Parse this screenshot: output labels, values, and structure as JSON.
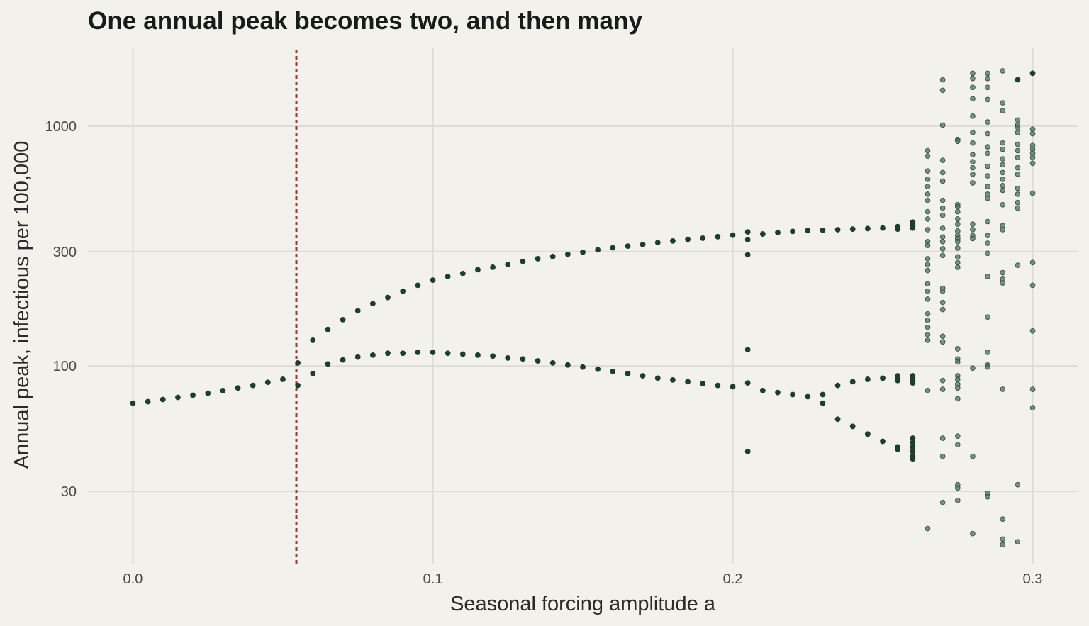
{
  "chart_data": {
    "type": "scatter",
    "title": "One annual peak becomes two, and then many",
    "xlabel": "Seasonal forcing amplitude a",
    "ylabel": "Annual peak, infectious per 100,000",
    "xlim": [
      -0.015,
      0.315
    ],
    "ylim": [
      15,
      2200
    ],
    "y_scale": "log",
    "grid": true,
    "x_ticks": [
      0.0,
      0.1,
      0.2,
      0.3
    ],
    "x_tick_labels": [
      "0.0",
      "0.1",
      "0.2",
      "0.3"
    ],
    "y_ticks": [
      30,
      100,
      300,
      1000
    ],
    "y_tick_labels": [
      "30",
      "100",
      "300",
      "1000"
    ],
    "reference_line": {
      "x": 0.0545,
      "style": "dotted",
      "color": "#9b3a3a"
    },
    "point_color": "#1f3d2c",
    "scatter_color": "#557562",
    "regular_points": [
      [
        0.0,
        70
      ],
      [
        0.005,
        71
      ],
      [
        0.01,
        72.5
      ],
      [
        0.015,
        74
      ],
      [
        0.02,
        75.5
      ],
      [
        0.025,
        77
      ],
      [
        0.03,
        79
      ],
      [
        0.035,
        81
      ],
      [
        0.04,
        83
      ],
      [
        0.045,
        85.5
      ],
      [
        0.05,
        88
      ],
      [
        0.055,
        103
      ],
      [
        0.055,
        83
      ],
      [
        0.06,
        128
      ],
      [
        0.06,
        93
      ],
      [
        0.065,
        142
      ],
      [
        0.065,
        102
      ],
      [
        0.07,
        156
      ],
      [
        0.07,
        106
      ],
      [
        0.075,
        170
      ],
      [
        0.075,
        109
      ],
      [
        0.08,
        182
      ],
      [
        0.08,
        111
      ],
      [
        0.085,
        193
      ],
      [
        0.085,
        113
      ],
      [
        0.09,
        205
      ],
      [
        0.09,
        113
      ],
      [
        0.095,
        217
      ],
      [
        0.095,
        114
      ],
      [
        0.1,
        228
      ],
      [
        0.1,
        114
      ],
      [
        0.105,
        236
      ],
      [
        0.105,
        113
      ],
      [
        0.11,
        243
      ],
      [
        0.11,
        112
      ],
      [
        0.115,
        252
      ],
      [
        0.115,
        111
      ],
      [
        0.12,
        258
      ],
      [
        0.12,
        110
      ],
      [
        0.125,
        265
      ],
      [
        0.125,
        108
      ],
      [
        0.13,
        273
      ],
      [
        0.13,
        107
      ],
      [
        0.135,
        280
      ],
      [
        0.135,
        105
      ],
      [
        0.14,
        286
      ],
      [
        0.14,
        103
      ],
      [
        0.145,
        292
      ],
      [
        0.145,
        101
      ],
      [
        0.15,
        298
      ],
      [
        0.15,
        99
      ],
      [
        0.155,
        305
      ],
      [
        0.155,
        97
      ],
      [
        0.16,
        311
      ],
      [
        0.16,
        95
      ],
      [
        0.165,
        316
      ],
      [
        0.165,
        93
      ],
      [
        0.17,
        321
      ],
      [
        0.17,
        91
      ],
      [
        0.175,
        327
      ],
      [
        0.175,
        89
      ],
      [
        0.18,
        332
      ],
      [
        0.18,
        87.5
      ],
      [
        0.185,
        337
      ],
      [
        0.185,
        86
      ],
      [
        0.19,
        341
      ],
      [
        0.19,
        84.5
      ],
      [
        0.195,
        346
      ],
      [
        0.195,
        83
      ],
      [
        0.2,
        351
      ],
      [
        0.2,
        82
      ],
      [
        0.205,
        362
      ],
      [
        0.205,
        336
      ],
      [
        0.205,
        291
      ],
      [
        0.205,
        117
      ],
      [
        0.205,
        85
      ],
      [
        0.205,
        44
      ],
      [
        0.21,
        355
      ],
      [
        0.21,
        79
      ],
      [
        0.215,
        360
      ],
      [
        0.215,
        77.5
      ],
      [
        0.22,
        364
      ],
      [
        0.22,
        76
      ],
      [
        0.225,
        367
      ],
      [
        0.225,
        74.5
      ],
      [
        0.23,
        368
      ],
      [
        0.23,
        76
      ],
      [
        0.23,
        70
      ],
      [
        0.235,
        370
      ],
      [
        0.235,
        83
      ],
      [
        0.235,
        60
      ],
      [
        0.24,
        372
      ],
      [
        0.24,
        86
      ],
      [
        0.24,
        56
      ],
      [
        0.245,
        374
      ],
      [
        0.245,
        88
      ],
      [
        0.245,
        52
      ],
      [
        0.25,
        376
      ],
      [
        0.25,
        89
      ],
      [
        0.25,
        48.5
      ],
      [
        0.255,
        381
      ],
      [
        0.255,
        376
      ],
      [
        0.255,
        372
      ],
      [
        0.255,
        91
      ],
      [
        0.255,
        89
      ],
      [
        0.255,
        87
      ],
      [
        0.255,
        46
      ],
      [
        0.255,
        45
      ],
      [
        0.26,
        398
      ],
      [
        0.26,
        392
      ],
      [
        0.26,
        386
      ],
      [
        0.26,
        381
      ],
      [
        0.26,
        376
      ],
      [
        0.26,
        91
      ],
      [
        0.26,
        89
      ],
      [
        0.26,
        87
      ],
      [
        0.26,
        85
      ],
      [
        0.26,
        50
      ],
      [
        0.26,
        48
      ],
      [
        0.26,
        46
      ],
      [
        0.26,
        44
      ],
      [
        0.26,
        42
      ],
      [
        0.26,
        41
      ],
      [
        0.295,
        1560
      ],
      [
        0.3,
        1660
      ]
    ],
    "scatter_points": [
      [
        0.265,
        790
      ],
      [
        0.265,
        750
      ],
      [
        0.265,
        650
      ],
      [
        0.265,
        600
      ],
      [
        0.265,
        560
      ],
      [
        0.265,
        520
      ],
      [
        0.265,
        490
      ],
      [
        0.265,
        440
      ],
      [
        0.265,
        410
      ],
      [
        0.265,
        370
      ],
      [
        0.265,
        330
      ],
      [
        0.265,
        318
      ],
      [
        0.265,
        280
      ],
      [
        0.265,
        265
      ],
      [
        0.265,
        250
      ],
      [
        0.265,
        220
      ],
      [
        0.265,
        205
      ],
      [
        0.265,
        190
      ],
      [
        0.265,
        165
      ],
      [
        0.265,
        155
      ],
      [
        0.265,
        145
      ],
      [
        0.265,
        135
      ],
      [
        0.265,
        128
      ],
      [
        0.265,
        79
      ],
      [
        0.265,
        21
      ],
      [
        0.27,
        1560
      ],
      [
        0.27,
        1410
      ],
      [
        0.27,
        1010
      ],
      [
        0.27,
        720
      ],
      [
        0.27,
        640
      ],
      [
        0.27,
        590
      ],
      [
        0.27,
        490
      ],
      [
        0.27,
        455
      ],
      [
        0.27,
        425
      ],
      [
        0.27,
        375
      ],
      [
        0.27,
        345
      ],
      [
        0.27,
        330
      ],
      [
        0.27,
        308
      ],
      [
        0.27,
        289
      ],
      [
        0.27,
        211
      ],
      [
        0.27,
        205
      ],
      [
        0.27,
        184
      ],
      [
        0.27,
        172
      ],
      [
        0.27,
        133
      ],
      [
        0.27,
        126
      ],
      [
        0.27,
        87
      ],
      [
        0.27,
        80
      ],
      [
        0.27,
        50
      ],
      [
        0.27,
        42
      ],
      [
        0.27,
        27
      ],
      [
        0.275,
        880
      ],
      [
        0.275,
        865
      ],
      [
        0.275,
        470
      ],
      [
        0.275,
        460
      ],
      [
        0.275,
        440
      ],
      [
        0.275,
        410
      ],
      [
        0.275,
        390
      ],
      [
        0.275,
        365
      ],
      [
        0.275,
        350
      ],
      [
        0.275,
        340
      ],
      [
        0.275,
        330
      ],
      [
        0.275,
        310
      ],
      [
        0.275,
        285
      ],
      [
        0.275,
        270
      ],
      [
        0.275,
        258
      ],
      [
        0.275,
        118
      ],
      [
        0.275,
        107
      ],
      [
        0.275,
        104
      ],
      [
        0.275,
        91
      ],
      [
        0.275,
        88
      ],
      [
        0.275,
        84
      ],
      [
        0.275,
        81
      ],
      [
        0.275,
        73
      ],
      [
        0.275,
        51
      ],
      [
        0.275,
        47
      ],
      [
        0.275,
        32
      ],
      [
        0.275,
        31
      ],
      [
        0.275,
        27.5
      ],
      [
        0.28,
        1660
      ],
      [
        0.28,
        1580
      ],
      [
        0.28,
        1450
      ],
      [
        0.28,
        1300
      ],
      [
        0.28,
        1100
      ],
      [
        0.28,
        940
      ],
      [
        0.28,
        850
      ],
      [
        0.28,
        760
      ],
      [
        0.28,
        710
      ],
      [
        0.28,
        670
      ],
      [
        0.28,
        630
      ],
      [
        0.28,
        580
      ],
      [
        0.28,
        390
      ],
      [
        0.28,
        370
      ],
      [
        0.28,
        350
      ],
      [
        0.28,
        340
      ],
      [
        0.28,
        98
      ],
      [
        0.28,
        42
      ],
      [
        0.28,
        20
      ],
      [
        0.285,
        1660
      ],
      [
        0.285,
        1580
      ],
      [
        0.285,
        1450
      ],
      [
        0.285,
        1290
      ],
      [
        0.285,
        1040
      ],
      [
        0.285,
        930
      ],
      [
        0.285,
        820
      ],
      [
        0.285,
        770
      ],
      [
        0.285,
        680
      ],
      [
        0.285,
        620
      ],
      [
        0.285,
        560
      ],
      [
        0.285,
        520
      ],
      [
        0.285,
        500
      ],
      [
        0.285,
        400
      ],
      [
        0.285,
        350
      ],
      [
        0.285,
        325
      ],
      [
        0.285,
        295
      ],
      [
        0.285,
        236
      ],
      [
        0.285,
        160
      ],
      [
        0.285,
        114
      ],
      [
        0.285,
        101
      ],
      [
        0.285,
        99
      ],
      [
        0.285,
        29.5
      ],
      [
        0.285,
        28.5
      ],
      [
        0.29,
        1700
      ],
      [
        0.29,
        1250
      ],
      [
        0.29,
        1160
      ],
      [
        0.29,
        850
      ],
      [
        0.29,
        800
      ],
      [
        0.29,
        730
      ],
      [
        0.29,
        690
      ],
      [
        0.29,
        640
      ],
      [
        0.29,
        600
      ],
      [
        0.29,
        565
      ],
      [
        0.29,
        540
      ],
      [
        0.29,
        470
      ],
      [
        0.29,
        385
      ],
      [
        0.29,
        370
      ],
      [
        0.29,
        245
      ],
      [
        0.29,
        230
      ],
      [
        0.29,
        222
      ],
      [
        0.29,
        80
      ],
      [
        0.29,
        23
      ],
      [
        0.29,
        19
      ],
      [
        0.29,
        18
      ],
      [
        0.295,
        1060
      ],
      [
        0.295,
        1010
      ],
      [
        0.295,
        990
      ],
      [
        0.295,
        940
      ],
      [
        0.295,
        840
      ],
      [
        0.295,
        790
      ],
      [
        0.295,
        740
      ],
      [
        0.295,
        670
      ],
      [
        0.295,
        630
      ],
      [
        0.295,
        550
      ],
      [
        0.295,
        520
      ],
      [
        0.295,
        480
      ],
      [
        0.295,
        455
      ],
      [
        0.295,
        263
      ],
      [
        0.295,
        32
      ],
      [
        0.295,
        18.5
      ],
      [
        0.3,
        970
      ],
      [
        0.3,
        930
      ],
      [
        0.3,
        830
      ],
      [
        0.3,
        800
      ],
      [
        0.3,
        770
      ],
      [
        0.3,
        740
      ],
      [
        0.3,
        700
      ],
      [
        0.3,
        525
      ],
      [
        0.3,
        270
      ],
      [
        0.3,
        217
      ],
      [
        0.3,
        140
      ],
      [
        0.3,
        80
      ],
      [
        0.3,
        67
      ]
    ]
  }
}
